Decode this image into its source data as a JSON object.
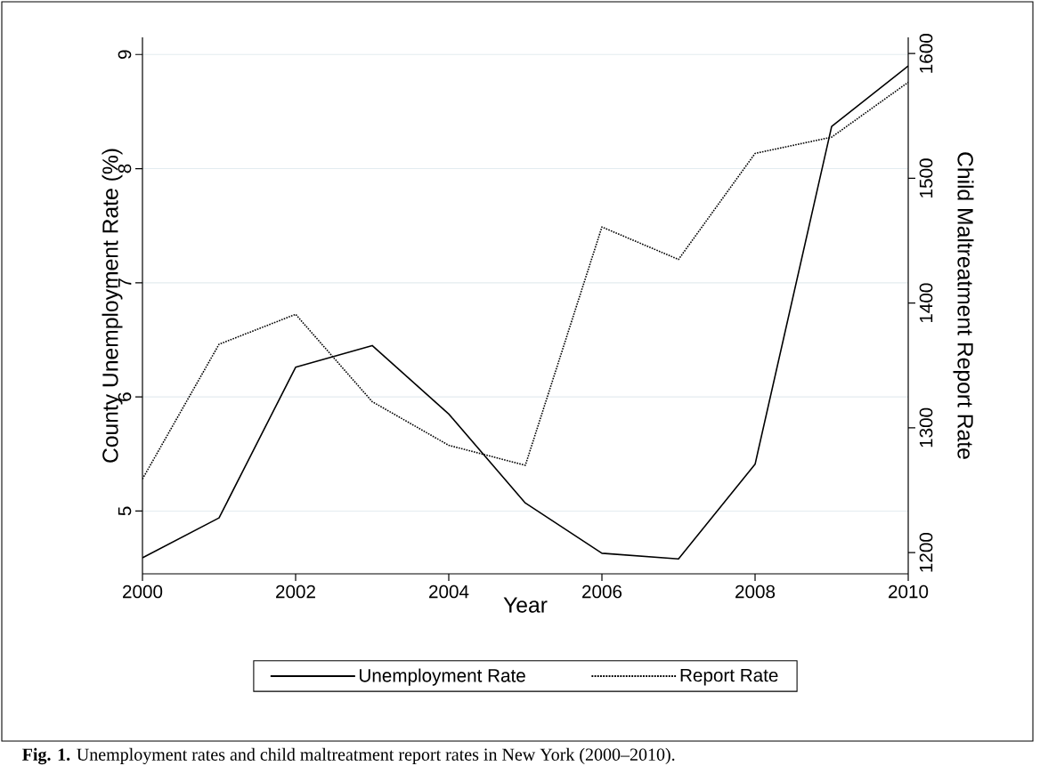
{
  "chart_data": {
    "type": "line",
    "x": [
      2000,
      2001,
      2002,
      2003,
      2004,
      2005,
      2006,
      2007,
      2008,
      2009,
      2010
    ],
    "series": [
      {
        "name": "Unemployment Rate",
        "color": "#000000",
        "line_style": "solid",
        "values": [
          4.59,
          4.94,
          6.26,
          6.45,
          5.85,
          5.07,
          4.63,
          4.58,
          5.41,
          8.37,
          8.9
        ]
      },
      {
        "name": "Report Rate",
        "color": "#000000",
        "line_style": "dotted",
        "axis": "y2",
        "values": [
          1259,
          1367,
          1391,
          1321,
          1286,
          1270,
          1461,
          1435,
          1520,
          1533,
          1577
        ]
      }
    ],
    "xlabel": "Year",
    "ylabel": "County Unemployment Rate (%)",
    "y2label": "Child Maltreatment Report Rate",
    "xlim": [
      2000,
      2010
    ],
    "xticks": [
      2000,
      2002,
      2004,
      2006,
      2008,
      2010
    ],
    "ylim": [
      4.45,
      9.15
    ],
    "yticks": [
      5,
      6,
      7,
      8,
      9
    ],
    "y2lim": [
      1183,
      1613
    ],
    "y2ticks": [
      1200,
      1300,
      1400,
      1500,
      1600
    ],
    "grid": "y",
    "legend": "bottom",
    "annotations": [
      "**Fig. 1.** Unemployment rates and child maltreatment report rates in New York (2000–2010)."
    ]
  }
}
